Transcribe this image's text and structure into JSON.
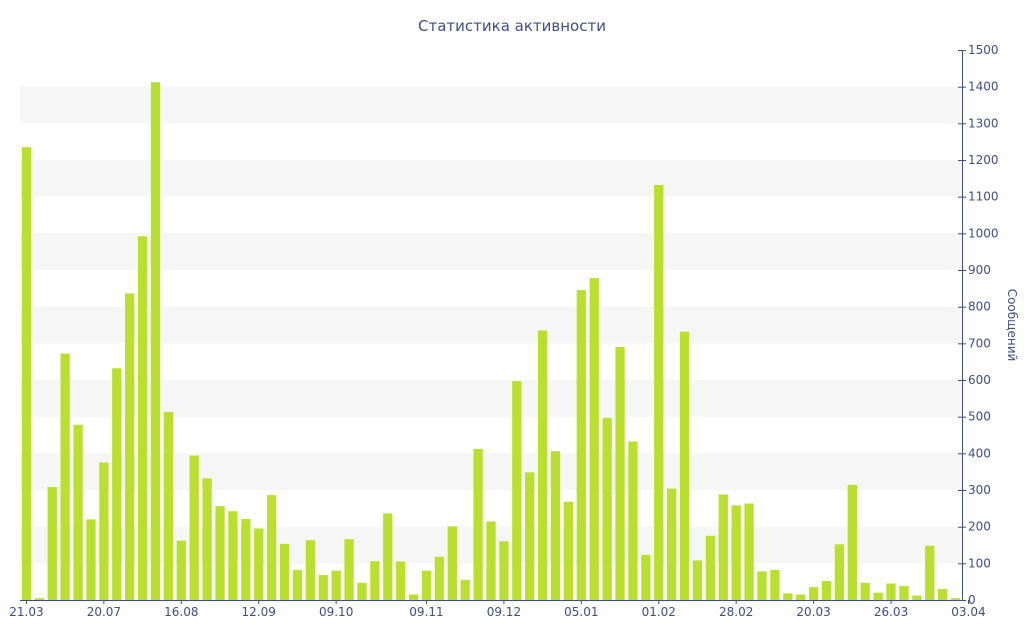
{
  "chart_data": {
    "type": "bar",
    "title": "Статистика активности",
    "xlabel": "",
    "ylabel": "Сообщений",
    "ylim": [
      0,
      1500
    ],
    "y_ticks": [
      0,
      100,
      200,
      300,
      400,
      500,
      600,
      700,
      800,
      900,
      1000,
      1100,
      1200,
      1300,
      1400,
      1500
    ],
    "y_axis_side": "right",
    "x_tick_labels": [
      {
        "index": 0,
        "label": "21.03"
      },
      {
        "index": 6,
        "label": "20.07"
      },
      {
        "index": 12,
        "label": "16.08"
      },
      {
        "index": 18,
        "label": "12.09"
      },
      {
        "index": 24,
        "label": "09.10"
      },
      {
        "index": 31,
        "label": "09.11"
      },
      {
        "index": 37,
        "label": "09.12"
      },
      {
        "index": 43,
        "label": "05.01"
      },
      {
        "index": 49,
        "label": "01.02"
      },
      {
        "index": 55,
        "label": "28.02"
      },
      {
        "index": 61,
        "label": "20.03"
      },
      {
        "index": 67,
        "label": "26.03"
      },
      {
        "index": 73,
        "label": "03.04"
      }
    ],
    "values": [
      1235,
      5,
      308,
      672,
      478,
      220,
      375,
      632,
      836,
      992,
      1412,
      513,
      162,
      394,
      332,
      256,
      242,
      221,
      195,
      286,
      153,
      82,
      163,
      68,
      80,
      166,
      47,
      106,
      236,
      105,
      15,
      80,
      118,
      201,
      55,
      412,
      214,
      160,
      597,
      348,
      735,
      406,
      268,
      845,
      878,
      497,
      690,
      432,
      123,
      1132,
      304,
      732,
      108,
      175,
      288,
      258,
      263,
      78,
      82,
      18,
      15,
      35,
      52,
      152,
      314,
      47,
      20,
      45,
      38,
      12,
      148,
      30,
      5
    ],
    "grid": "alternating horizontal bands",
    "colors": {
      "bar": "#b8e02c",
      "band": "#f6f6f6",
      "text": "#3c4f8a",
      "axis": "#3c4f8a"
    }
  }
}
